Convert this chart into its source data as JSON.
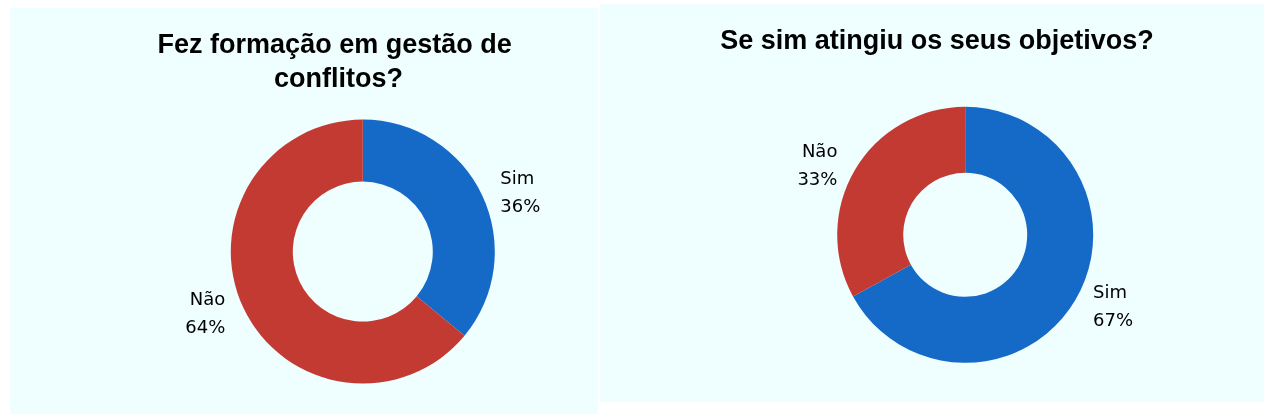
{
  "chart_data": [
    {
      "type": "donut",
      "title": "Fez formação em gestão de conflitos?",
      "categories": [
        "Sim",
        "Não"
      ],
      "values": [
        36,
        64
      ],
      "value_labels": [
        "36%",
        "64%"
      ],
      "colors": [
        "#1569c7",
        "#c33a33"
      ],
      "legend": false
    },
    {
      "type": "donut",
      "title": "Se sim atingiu os seus objetivos?",
      "categories": [
        "Sim",
        "Não"
      ],
      "values": [
        67,
        33
      ],
      "value_labels": [
        "67%",
        "33%"
      ],
      "colors": [
        "#1569c7",
        "#c33a33"
      ],
      "legend": false
    }
  ]
}
